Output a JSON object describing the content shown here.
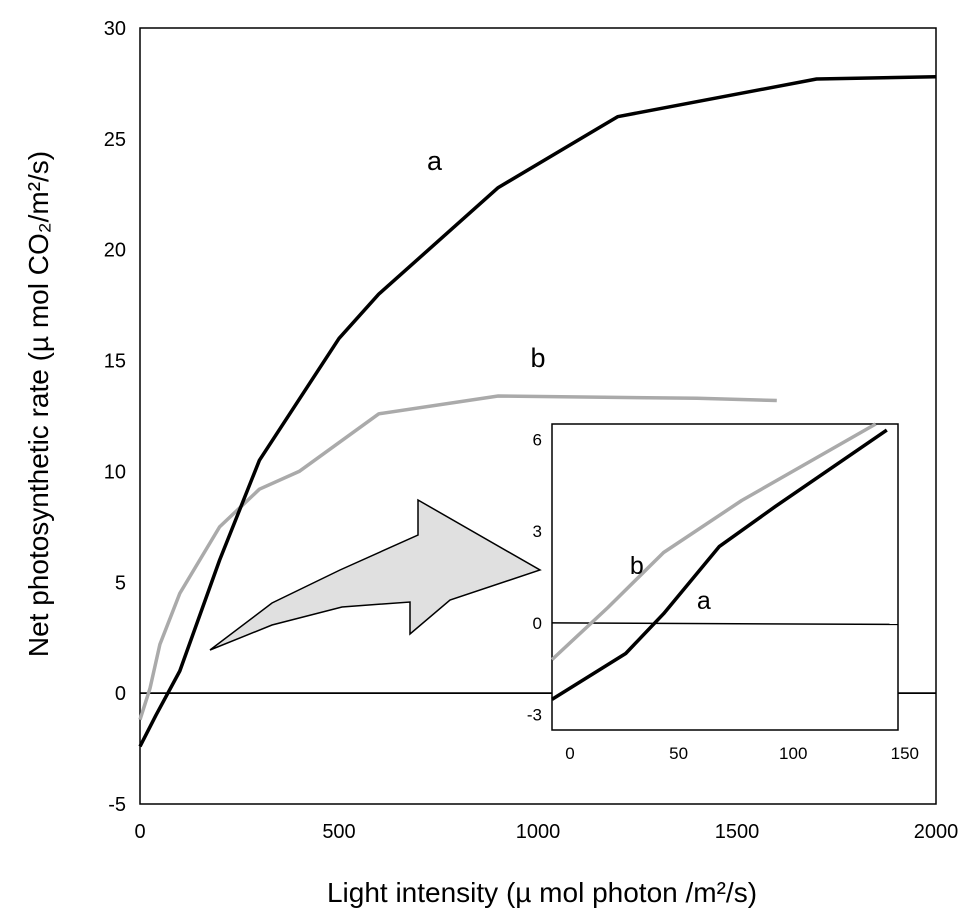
{
  "chart_data": {
    "type": "line",
    "xlabel": "Light intensity (µ mol photon /m²/s)",
    "ylabel": "Net photosynthetic rate (µ mol CO₂/m²/s)",
    "xlim": [
      0,
      2000
    ],
    "ylim": [
      -5,
      30
    ],
    "xticks": [
      "0",
      "500",
      "1000",
      "1500",
      "2000"
    ],
    "yticks": [
      "-5",
      "0",
      "5",
      "10",
      "15",
      "20",
      "25",
      "30"
    ],
    "zero_line": true,
    "grid": false,
    "colors": {
      "a": "#000000",
      "b": "#aaaaaa",
      "arrow": "#e0e0e0"
    },
    "series": [
      {
        "name": "a",
        "x": [
          0,
          40,
          100,
          200,
          300,
          500,
          600,
          900,
          1200,
          1700,
          2000
        ],
        "y": [
          -2.4,
          -1.0,
          1.0,
          6.0,
          10.5,
          16.0,
          18.0,
          22.8,
          26.0,
          27.7,
          27.8
        ]
      },
      {
        "name": "b",
        "x": [
          0,
          25,
          50,
          100,
          200,
          300,
          400,
          600,
          900,
          1400,
          1600
        ],
        "y": [
          -1.2,
          0.2,
          2.2,
          4.5,
          7.5,
          9.2,
          10.0,
          12.6,
          13.4,
          13.3,
          13.2
        ]
      }
    ],
    "inset": {
      "xlim": [
        0,
        155
      ],
      "ylim": [
        -3.5,
        6.5
      ],
      "xticks": [
        "0",
        "50",
        "100",
        "150"
      ],
      "yticks": [
        "-3",
        "0",
        "3",
        "6"
      ],
      "zero_line": true,
      "series": [
        {
          "name": "a",
          "x": [
            0,
            33,
            50,
            75,
            100,
            150
          ],
          "y": [
            -2.5,
            -1.0,
            0.3,
            2.5,
            3.8,
            6.3
          ]
        },
        {
          "name": "b",
          "x": [
            0,
            25,
            50,
            85,
            145
          ],
          "y": [
            -1.2,
            0.5,
            2.3,
            4.0,
            6.5
          ]
        }
      ]
    }
  }
}
